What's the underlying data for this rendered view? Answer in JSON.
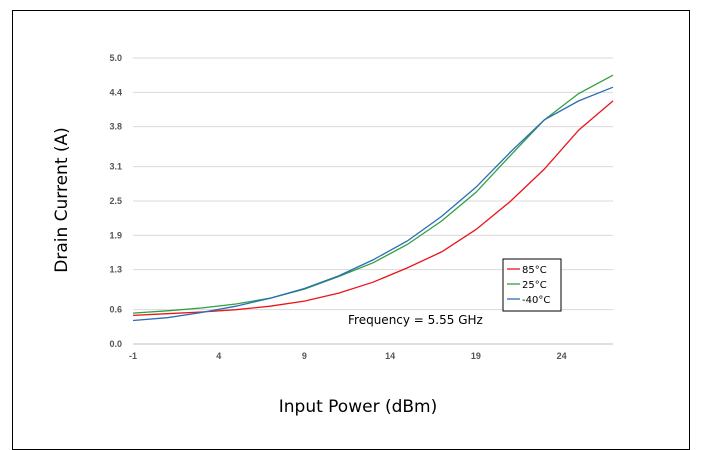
{
  "chart_data": {
    "type": "line",
    "title": "",
    "xlabel": "Input Power (dBm)",
    "ylabel": "Drain Current (A)",
    "annotation": "Frequency = 5.55 GHz",
    "xlim": [
      -1,
      27
    ],
    "ylim": [
      0,
      5.0
    ],
    "x_ticks": [
      -1,
      4,
      9,
      14,
      19,
      24
    ],
    "y_ticks": [
      0.0,
      0.6,
      1.3,
      1.9,
      2.5,
      3.1,
      3.8,
      4.4,
      5.0
    ],
    "y_tick_labels": [
      "0.0",
      "0.6",
      "1.3",
      "1.9",
      "2.5",
      "3.1",
      "3.8",
      "4.4",
      "5.0"
    ],
    "grid": "horizontal",
    "legend_position": "right",
    "series": [
      {
        "name": "85°C",
        "color": "#e8151b",
        "x": [
          -1,
          1,
          3,
          5,
          7,
          9,
          11,
          13,
          15,
          17,
          19,
          21,
          23,
          25,
          27
        ],
        "y": [
          0.5,
          0.53,
          0.56,
          0.6,
          0.66,
          0.75,
          0.89,
          1.08,
          1.33,
          1.61,
          2.0,
          2.49,
          3.06,
          3.74,
          4.25
        ]
      },
      {
        "name": "25°C",
        "color": "#2ea043",
        "x": [
          -1,
          1,
          3,
          5,
          7,
          9,
          11,
          13,
          15,
          17,
          19,
          21,
          23,
          25,
          27
        ],
        "y": [
          0.54,
          0.58,
          0.63,
          0.7,
          0.8,
          0.96,
          1.18,
          1.42,
          1.74,
          2.15,
          2.65,
          3.29,
          3.92,
          4.38,
          4.7
        ]
      },
      {
        "name": "-40°C",
        "color": "#2b6cb8",
        "x": [
          -1,
          1,
          3,
          5,
          7,
          9,
          11,
          13,
          15,
          17,
          19,
          21,
          23,
          25,
          27
        ],
        "y": [
          0.41,
          0.46,
          0.55,
          0.66,
          0.8,
          0.97,
          1.19,
          1.47,
          1.8,
          2.23,
          2.74,
          3.35,
          3.92,
          4.25,
          4.49
        ]
      }
    ]
  }
}
